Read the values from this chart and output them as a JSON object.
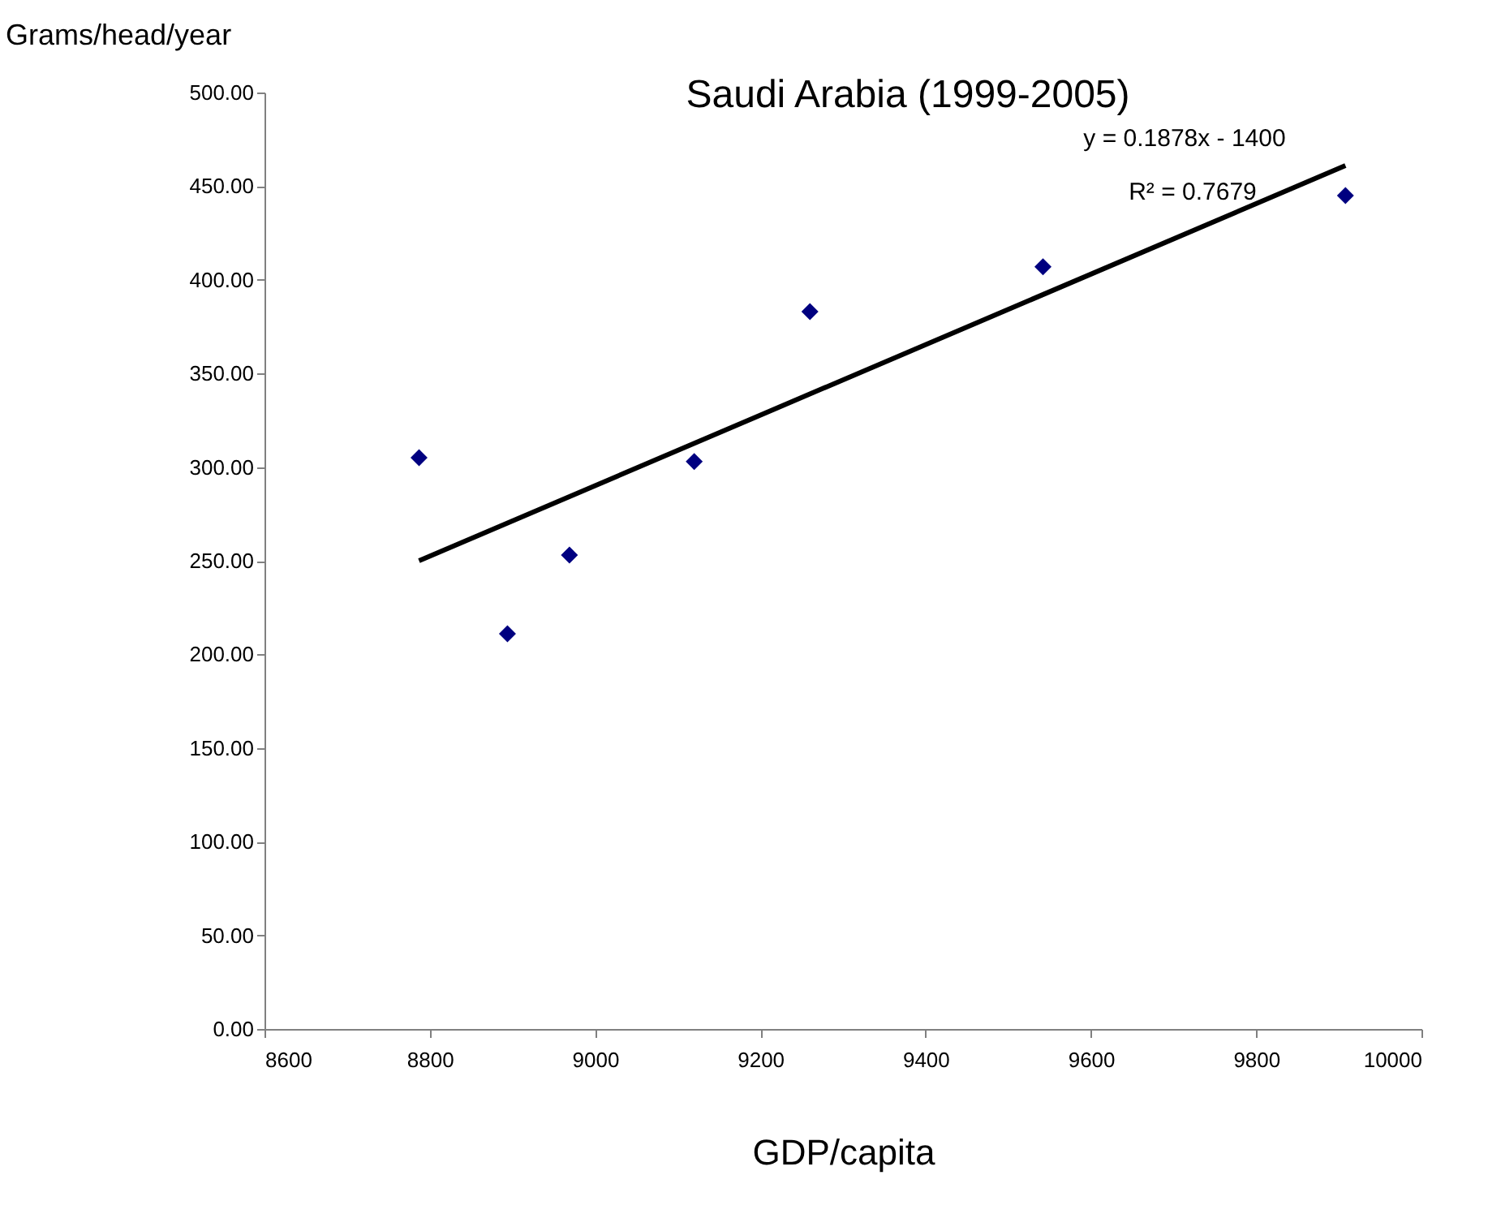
{
  "chart_data": {
    "type": "scatter",
    "title": "Saudi Arabia (1999-2005)",
    "xlabel": "GDP/capita",
    "ylabel": "Grams/head/year",
    "x": [
      8787,
      8894,
      8969,
      9120,
      9260,
      9542,
      9908
    ],
    "series": [
      {
        "color": "#000080",
        "marker": "diamond",
        "values": [
          305,
          211,
          253,
          303,
          383,
          407,
          445
        ]
      },
      {
        "type": "line",
        "color": "#000000",
        "marker": "none",
        "x": [
          8787,
          9908
        ],
        "values": [
          250,
          461
        ]
      }
    ],
    "annotations": [
      "y = 0.1878x - 1400",
      "R² = 0.7679"
    ],
    "xlim": [
      8600,
      10000
    ],
    "xticks": [
      8600,
      8800,
      9000,
      9200,
      9400,
      9600,
      9800,
      10000
    ],
    "ylim": [
      0,
      500
    ],
    "yticks": [
      {
        "value": 0,
        "label": "0.00"
      },
      {
        "value": 50,
        "label": "50.00"
      },
      {
        "value": 100,
        "label": "100.00"
      },
      {
        "value": 150,
        "label": "150.00"
      },
      {
        "value": 200,
        "label": "200.00"
      },
      {
        "value": 250,
        "label": "250.00"
      },
      {
        "value": 300,
        "label": "300.00"
      },
      {
        "value": 350,
        "label": "350.00"
      },
      {
        "value": 400,
        "label": "400.00"
      },
      {
        "value": 450,
        "label": "450.00"
      },
      {
        "value": 500,
        "label": "500.00"
      }
    ],
    "tick_labels": "xy"
  }
}
